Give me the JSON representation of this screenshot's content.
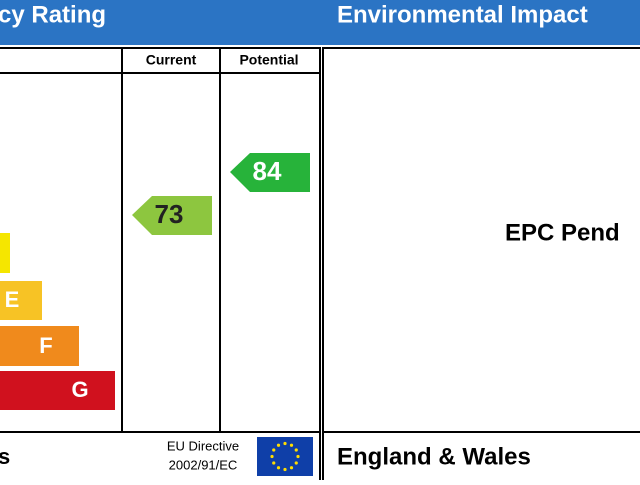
{
  "header": {
    "left_title": "cy Rating",
    "right_title": "Environmental Impact"
  },
  "columns": {
    "current": "Current",
    "potential": "Potential"
  },
  "bands": [
    "E",
    "F",
    "G"
  ],
  "ratings": {
    "current": 73,
    "potential": 84
  },
  "status": "EPC Pend",
  "footer": {
    "left_region": "s",
    "directive_line1": "EU Directive",
    "directive_line2": "2002/91/EC",
    "right_region": "England & Wales"
  }
}
